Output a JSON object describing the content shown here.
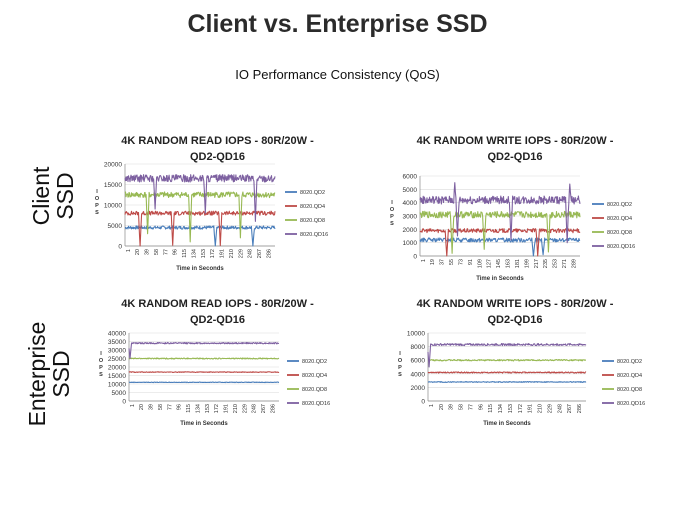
{
  "page": {
    "title": "Client vs. Enterprise SSD",
    "subtitle": "IO Performance Consistency (QoS)",
    "row_labels": {
      "client_line1": "Client",
      "client_line2": "SSD",
      "enterprise_line1": "Enterprise",
      "enterprise_line2": "SSD"
    }
  },
  "chart_data": [
    {
      "type": "line",
      "title_line1": "4K RANDOM READ IOPS - 80R/20W -",
      "title_line2": "QD2-QD16",
      "xlabel": "Time in Seconds",
      "ylabel": "I O P S",
      "ylim": [
        0,
        20000
      ],
      "yticks": [
        0,
        5000,
        10000,
        15000,
        20000
      ],
      "xticks": [
        "1",
        "20",
        "39",
        "58",
        "77",
        "96",
        "115",
        "134",
        "153",
        "172",
        "191",
        "210",
        "229",
        "248",
        "267",
        "286"
      ],
      "series": [
        {
          "name": "8020.QD2",
          "color": "#4a7ebb",
          "level": 4500,
          "noise": 400,
          "dips": [
            {
              "x": 180,
              "v": 0
            },
            {
              "x": 255,
              "v": 0
            }
          ]
        },
        {
          "name": "8020.QD4",
          "color": "#be4b48",
          "level": 8000,
          "noise": 500,
          "dips": [
            {
              "x": 30,
              "v": 0
            },
            {
              "x": 95,
              "v": 200
            },
            {
              "x": 190,
              "v": 100
            }
          ]
        },
        {
          "name": "8020.QD8",
          "color": "#98b954",
          "level": 12500,
          "noise": 700,
          "dips": [
            {
              "x": 45,
              "v": 3000
            },
            {
              "x": 130,
              "v": 1000
            },
            {
              "x": 230,
              "v": 2000
            }
          ]
        },
        {
          "name": "8020.QD16",
          "color": "#7d60a0",
          "level": 16500,
          "noise": 900,
          "dips": [
            {
              "x": 60,
              "v": 9000
            },
            {
              "x": 160,
              "v": 8000
            },
            {
              "x": 260,
              "v": 6000
            }
          ]
        }
      ],
      "legend": "right"
    },
    {
      "type": "line",
      "title_line1": "4K RANDOM WRITE IOPS - 80R/20W -",
      "title_line2": "QD2-QD16",
      "xlabel": "Time in Seconds",
      "ylabel": "I O P S",
      "ylim": [
        0,
        6000
      ],
      "yticks": [
        0,
        1000,
        2000,
        3000,
        4000,
        5000,
        6000
      ],
      "xticks": [
        "1",
        "19",
        "37",
        "55",
        "73",
        "91",
        "109",
        "127",
        "145",
        "163",
        "181",
        "199",
        "217",
        "235",
        "253",
        "271",
        "289"
      ],
      "series": [
        {
          "name": "8020.QD2",
          "color": "#4a7ebb",
          "level": 1200,
          "noise": 150,
          "dips": [
            {
              "x": 212,
              "v": 0
            },
            {
              "x": 230,
              "v": 100
            }
          ]
        },
        {
          "name": "8020.QD4",
          "color": "#be4b48",
          "level": 1900,
          "noise": 150,
          "dips": [
            {
              "x": 50,
              "v": 0
            },
            {
              "x": 220,
              "v": 0
            }
          ]
        },
        {
          "name": "8020.QD8",
          "color": "#98b954",
          "level": 3100,
          "noise": 250,
          "dips": [
            {
              "x": 60,
              "v": 200
            },
            {
              "x": 120,
              "v": 500
            },
            {
              "x": 240,
              "v": 300
            }
          ]
        },
        {
          "name": "8020.QD16",
          "color": "#7d60a0",
          "level": 4200,
          "noise": 300,
          "dips": [
            {
              "x": 70,
              "v": 1500
            },
            {
              "x": 170,
              "v": 1200
            },
            {
              "x": 275,
              "v": 1000
            }
          ],
          "peaks": [
            {
              "x": 65,
              "v": 5500
            },
            {
              "x": 280,
              "v": 5400
            }
          ]
        }
      ],
      "legend": "right"
    },
    {
      "type": "line",
      "title_line1": "4K RANDOM READ IOPS - 80R/20W -",
      "title_line2": "QD2-QD16",
      "xlabel": "Time in Seconds",
      "ylabel": "I O P S",
      "ylim": [
        0,
        40000
      ],
      "yticks": [
        0,
        5000,
        10000,
        15000,
        20000,
        25000,
        30000,
        35000,
        40000
      ],
      "xticks": [
        "1",
        "20",
        "39",
        "58",
        "77",
        "96",
        "115",
        "134",
        "153",
        "172",
        "191",
        "210",
        "229",
        "248",
        "267",
        "286"
      ],
      "series": [
        {
          "name": "8020.QD2",
          "color": "#4a7ebb",
          "level": 11000,
          "noise": 150,
          "dips": []
        },
        {
          "name": "8020.QD4",
          "color": "#be4b48",
          "level": 17000,
          "noise": 200,
          "dips": []
        },
        {
          "name": "8020.QD8",
          "color": "#98b954",
          "level": 25000,
          "noise": 300,
          "dips": []
        },
        {
          "name": "8020.QD16",
          "color": "#7d60a0",
          "level": 34000,
          "noise": 400,
          "dips": [
            {
              "x": 2,
              "v": 25000
            }
          ]
        }
      ],
      "legend": "right"
    },
    {
      "type": "line",
      "title_line1": "4K RANDOM WRITE IOPS - 80R/20W -",
      "title_line2": "QD2-QD16",
      "xlabel": "Time in Seconds",
      "ylabel": "I O P S",
      "ylim": [
        0,
        10000
      ],
      "yticks": [
        0,
        2000,
        4000,
        6000,
        8000,
        10000
      ],
      "xticks": [
        "1",
        "20",
        "39",
        "58",
        "77",
        "96",
        "115",
        "134",
        "153",
        "172",
        "191",
        "210",
        "229",
        "248",
        "267",
        "286"
      ],
      "series": [
        {
          "name": "8020.QD2",
          "color": "#4a7ebb",
          "level": 2800,
          "noise": 60,
          "dips": []
        },
        {
          "name": "8020.QD4",
          "color": "#be4b48",
          "level": 4200,
          "noise": 80,
          "dips": []
        },
        {
          "name": "8020.QD8",
          "color": "#98b954",
          "level": 6000,
          "noise": 100,
          "dips": []
        },
        {
          "name": "8020.QD16",
          "color": "#7d60a0",
          "level": 8300,
          "noise": 150,
          "dips": [
            {
              "x": 2,
              "v": 5000
            }
          ]
        }
      ],
      "legend": "right"
    }
  ]
}
